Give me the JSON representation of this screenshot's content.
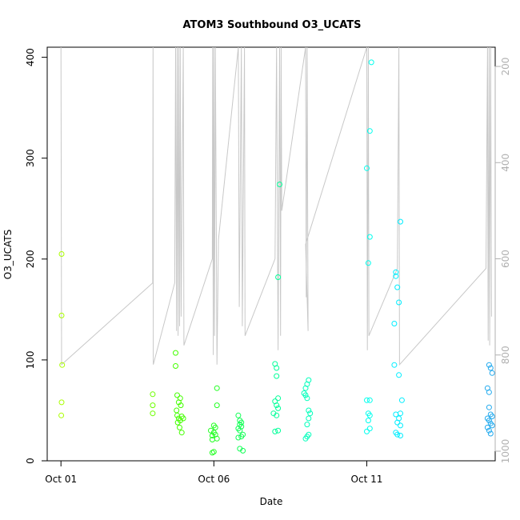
{
  "chart_data": {
    "type": "scatter",
    "title": "ATOM3 Southbound O3_UCATS",
    "xlabel": "Date",
    "ylabel": "O3_UCATS",
    "x_unit": "days since Oct 01",
    "x_ticks": [
      {
        "value": 0,
        "label": "Oct 01"
      },
      {
        "value": 5,
        "label": "Oct 06"
      },
      {
        "value": 10,
        "label": "Oct 11"
      }
    ],
    "xlim": [
      -0.45,
      14.2
    ],
    "ylim": [
      0,
      410
    ],
    "y_ticks": [
      0,
      100,
      200,
      300,
      400
    ],
    "y2_label": "",
    "y2_ticks": [
      200,
      400,
      600,
      800,
      1000
    ],
    "y2lim": [
      1020,
      160
    ],
    "y2_reversed": true,
    "grid": false,
    "series": [
      {
        "kind": "points",
        "points": [
          [
            0.02,
            205,
            "#aaff00"
          ],
          [
            0.02,
            144,
            "#aaff00"
          ],
          [
            0.04,
            95,
            "#aaff00"
          ],
          [
            0.02,
            58,
            "#aaff00"
          ],
          [
            0.01,
            45,
            "#aaff00"
          ],
          [
            3.0,
            66,
            "#6dff00"
          ],
          [
            3.0,
            55,
            "#6dff00"
          ],
          [
            3.0,
            47,
            "#6dff00"
          ],
          [
            3.75,
            107,
            "#44ff00"
          ],
          [
            3.75,
            94,
            "#44ff00"
          ],
          [
            3.8,
            65,
            "#44ff00"
          ],
          [
            3.85,
            58,
            "#44ff00"
          ],
          [
            3.9,
            62,
            "#44ff00"
          ],
          [
            3.92,
            55,
            "#44ff00"
          ],
          [
            3.8,
            45,
            "#44ff00"
          ],
          [
            3.85,
            42,
            "#44ff00"
          ],
          [
            3.9,
            40,
            "#44ff00"
          ],
          [
            3.95,
            44,
            "#44ff00"
          ],
          [
            4.0,
            42,
            "#44ff00"
          ],
          [
            3.82,
            38,
            "#44ff00"
          ],
          [
            3.88,
            33,
            "#44ff00"
          ],
          [
            3.95,
            28,
            "#44ff00"
          ],
          [
            3.78,
            50,
            "#44ff00"
          ],
          [
            5.1,
            72,
            "#22ff22"
          ],
          [
            5.1,
            55,
            "#22ff22"
          ],
          [
            4.9,
            30,
            "#22ff22"
          ],
          [
            5.0,
            28,
            "#22ff22"
          ],
          [
            5.05,
            26,
            "#22ff22"
          ],
          [
            4.95,
            25,
            "#22ff22"
          ],
          [
            5.1,
            22,
            "#22ff22"
          ],
          [
            4.95,
            21,
            "#22ff22"
          ],
          [
            5.0,
            35,
            "#22ff22"
          ],
          [
            5.05,
            33,
            "#22ff22"
          ],
          [
            5.0,
            9,
            "#22ff22"
          ],
          [
            4.95,
            8,
            "#22ff22"
          ],
          [
            5.8,
            45,
            "#11ff55"
          ],
          [
            5.85,
            40,
            "#11ff55"
          ],
          [
            5.9,
            38,
            "#11ff55"
          ],
          [
            5.85,
            36,
            "#11ff55"
          ],
          [
            5.9,
            34,
            "#11ff55"
          ],
          [
            5.8,
            32,
            "#11ff55"
          ],
          [
            5.85,
            30,
            "#11ff55"
          ],
          [
            5.95,
            26,
            "#11ff55"
          ],
          [
            5.9,
            24,
            "#11ff55"
          ],
          [
            5.8,
            23,
            "#11ff55"
          ],
          [
            5.85,
            12,
            "#11ff55"
          ],
          [
            5.95,
            10,
            "#11ff55"
          ],
          [
            7.15,
            274,
            "#00ff99"
          ],
          [
            7.1,
            182,
            "#00ff99"
          ],
          [
            7.0,
            96,
            "#00ff99"
          ],
          [
            7.05,
            92,
            "#00ff99"
          ],
          [
            7.05,
            84,
            "#00ff99"
          ],
          [
            7.1,
            62,
            "#00ff99"
          ],
          [
            7.0,
            59,
            "#00ff99"
          ],
          [
            7.05,
            55,
            "#00ff99"
          ],
          [
            7.1,
            52,
            "#00ff99"
          ],
          [
            6.95,
            47,
            "#00ff99"
          ],
          [
            7.05,
            45,
            "#00ff99"
          ],
          [
            7.1,
            30,
            "#00ff99"
          ],
          [
            7.0,
            29,
            "#00ff99"
          ],
          [
            8.0,
            72,
            "#00ffbb"
          ],
          [
            8.05,
            76,
            "#00ffbb"
          ],
          [
            8.1,
            80,
            "#00ffbb"
          ],
          [
            7.95,
            67,
            "#00ffbb"
          ],
          [
            8.0,
            65,
            "#00ffbb"
          ],
          [
            8.05,
            62,
            "#00ffbb"
          ],
          [
            8.1,
            50,
            "#00ffbb"
          ],
          [
            8.15,
            47,
            "#00ffbb"
          ],
          [
            8.1,
            42,
            "#00ffbb"
          ],
          [
            8.05,
            36,
            "#00ffbb"
          ],
          [
            8.1,
            26,
            "#00ffbb"
          ],
          [
            8.05,
            24,
            "#00ffbb"
          ],
          [
            8.0,
            22,
            "#00ffbb"
          ],
          [
            10.15,
            395,
            "#00ffee"
          ],
          [
            10.1,
            327,
            "#00ffee"
          ],
          [
            10.0,
            290,
            "#00ffee"
          ],
          [
            10.1,
            222,
            "#00ffee"
          ],
          [
            10.05,
            196,
            "#00ffee"
          ],
          [
            10.0,
            60,
            "#00ffee"
          ],
          [
            10.1,
            60,
            "#00ffee"
          ],
          [
            10.05,
            47,
            "#00ffee"
          ],
          [
            10.1,
            45,
            "#00ffee"
          ],
          [
            10.05,
            40,
            "#00ffee"
          ],
          [
            10.1,
            32,
            "#00ffee"
          ],
          [
            10.0,
            29,
            "#00ffee"
          ],
          [
            11.1,
            237,
            "#00eeff"
          ],
          [
            10.95,
            187,
            "#00eeff"
          ],
          [
            10.95,
            183,
            "#00eeff"
          ],
          [
            11.0,
            172,
            "#00eeff"
          ],
          [
            11.05,
            157,
            "#00eeff"
          ],
          [
            10.9,
            136,
            "#00eeff"
          ],
          [
            10.9,
            95,
            "#00eeff"
          ],
          [
            11.05,
            85,
            "#00eeff"
          ],
          [
            11.15,
            60,
            "#00eeff"
          ],
          [
            11.1,
            47,
            "#00eeff"
          ],
          [
            10.95,
            46,
            "#00eeff"
          ],
          [
            11.05,
            42,
            "#00eeff"
          ],
          [
            11.0,
            38,
            "#00eeff"
          ],
          [
            11.1,
            35,
            "#00eeff"
          ],
          [
            10.95,
            28,
            "#00eeff"
          ],
          [
            11.1,
            25,
            "#00eeff"
          ],
          [
            11.0,
            26,
            "#00eeff"
          ],
          [
            14.0,
            95,
            "#22aaee"
          ],
          [
            14.05,
            92,
            "#22aaee"
          ],
          [
            14.1,
            87,
            "#22aaee"
          ],
          [
            13.95,
            72,
            "#22aaee"
          ],
          [
            14.0,
            68,
            "#22aaee"
          ],
          [
            14.0,
            53,
            "#22aaee"
          ],
          [
            14.05,
            46,
            "#22aaee"
          ],
          [
            13.95,
            42,
            "#22aaee"
          ],
          [
            14.1,
            44,
            "#22aaee"
          ],
          [
            14.0,
            40,
            "#22aaee"
          ],
          [
            14.05,
            37,
            "#22aaee"
          ],
          [
            14.1,
            35,
            "#22aaee"
          ],
          [
            13.95,
            33,
            "#22aaee"
          ],
          [
            14.0,
            30,
            "#22aaee"
          ],
          [
            14.05,
            27,
            "#22aaee"
          ]
        ]
      },
      {
        "kind": "altitude_line",
        "axis": "right",
        "color": "#c8c8c8",
        "points": [
          [
            0.0,
            0
          ],
          [
            0.02,
            820
          ],
          [
            3.0,
            650
          ],
          [
            3.01,
            100
          ],
          [
            3.02,
            820
          ],
          [
            3.72,
            650
          ],
          [
            3.75,
            160
          ],
          [
            3.78,
            750
          ],
          [
            3.8,
            160
          ],
          [
            3.83,
            760
          ],
          [
            3.85,
            160
          ],
          [
            3.88,
            740
          ],
          [
            3.9,
            160
          ],
          [
            3.93,
            720
          ],
          [
            4.0,
            100
          ],
          [
            4.02,
            780
          ],
          [
            4.95,
            600
          ],
          [
            4.96,
            100
          ],
          [
            4.98,
            800
          ],
          [
            5.0,
            160
          ],
          [
            5.02,
            760
          ],
          [
            5.05,
            160
          ],
          [
            5.1,
            820
          ],
          [
            5.15,
            560
          ],
          [
            5.8,
            160
          ],
          [
            5.83,
            700
          ],
          [
            5.9,
            160
          ],
          [
            5.93,
            740
          ],
          [
            6.0,
            160
          ],
          [
            6.02,
            760
          ],
          [
            7.0,
            600
          ],
          [
            7.05,
            100
          ],
          [
            7.1,
            790
          ],
          [
            7.15,
            160
          ],
          [
            7.18,
            760
          ],
          [
            7.2,
            160
          ],
          [
            7.22,
            500
          ],
          [
            8.0,
            160
          ],
          [
            8.02,
            680
          ],
          [
            8.05,
            160
          ],
          [
            8.08,
            750
          ],
          [
            8.0,
            570
          ],
          [
            10.0,
            160
          ],
          [
            10.02,
            790
          ],
          [
            10.05,
            160
          ],
          [
            10.07,
            760
          ],
          [
            11.0,
            620
          ],
          [
            11.05,
            160
          ],
          [
            11.07,
            820
          ],
          [
            13.9,
            620
          ],
          [
            13.95,
            160
          ],
          [
            13.97,
            770
          ],
          [
            14.0,
            160
          ],
          [
            14.02,
            780
          ],
          [
            14.05,
            160
          ],
          [
            14.08,
            720
          ]
        ]
      }
    ]
  }
}
